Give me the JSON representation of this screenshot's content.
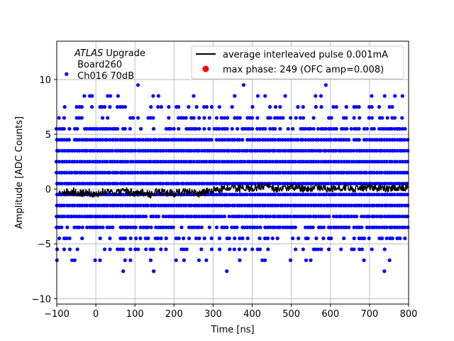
{
  "chart_data": {
    "type": "scatter",
    "xlabel": "Time [ns]",
    "ylabel": "Amplitude [ADC Counts]",
    "xlim": [
      -100,
      800
    ],
    "ylim": [
      -10.5,
      13.5
    ],
    "xticks": [
      -100,
      0,
      100,
      200,
      300,
      400,
      500,
      600,
      700,
      800
    ],
    "yticks": [
      -10,
      -5,
      0,
      5,
      10
    ],
    "grid": true,
    "legend_position": "top-right",
    "annotation": {
      "experiment": "ATLAS",
      "title_rest": " Upgrade",
      "line2": " Board260",
      "line3": " Ch016 70dB"
    },
    "series": [
      {
        "name": "average interleaved pulse 0.001mA",
        "kind": "line",
        "color": "#000000",
        "x": [
          -95,
          -80,
          -60,
          -40,
          -20,
          0,
          20,
          40,
          60,
          80,
          100,
          120,
          140,
          160,
          180,
          200,
          220,
          240,
          260,
          280,
          300,
          320,
          340,
          360,
          380,
          400,
          420,
          440,
          460,
          480,
          500,
          520,
          540,
          560,
          580,
          600,
          620,
          640,
          660,
          680,
          700,
          720,
          740,
          760,
          780,
          800
        ],
        "y": [
          -0.1,
          -0.3,
          -0.2,
          -0.4,
          -0.3,
          -0.5,
          -0.2,
          -0.4,
          -0.3,
          -0.2,
          -0.4,
          -0.3,
          -0.5,
          -0.2,
          -0.3,
          -0.4,
          -0.3,
          -0.2,
          -0.4,
          -0.3,
          -0.1,
          0.0,
          0.1,
          0.0,
          0.1,
          0.0,
          0.2,
          0.1,
          0.0,
          0.1,
          0.2,
          0.1,
          0.0,
          0.2,
          0.1,
          0.0,
          0.1,
          0.2,
          0.0,
          0.1,
          0.2,
          0.1,
          0.0,
          0.1,
          0.2,
          0.1
        ]
      },
      {
        "name": "max phase: 249 (OFC amp=0.008)",
        "kind": "scatter",
        "color": "#0000ff",
        "legend_color": "#ff0000",
        "levels": [
          -6.5,
          -5.5,
          -4.5,
          -3.5,
          -2.5,
          -1.5,
          -0.5,
          0.5,
          1.5,
          2.5,
          3.5,
          4.5,
          5.5,
          6.5,
          7.5,
          8.5,
          9.5
        ],
        "level_density": [
          0.15,
          0.25,
          0.5,
          0.75,
          0.95,
          1.0,
          1.0,
          1.0,
          1.0,
          1.0,
          1.0,
          0.95,
          0.75,
          0.5,
          0.25,
          0.12,
          0.02
        ],
        "x_range": [
          -100,
          800
        ]
      }
    ],
    "extra_points": [
      {
        "x": -75,
        "y": 10.5
      },
      {
        "x": 378,
        "y": 9.5
      },
      {
        "x": 70,
        "y": -7.5
      },
      {
        "x": 148,
        "y": -7.5
      },
      {
        "x": 335,
        "y": -7.5
      },
      {
        "x": 738,
        "y": -7.5
      }
    ]
  }
}
